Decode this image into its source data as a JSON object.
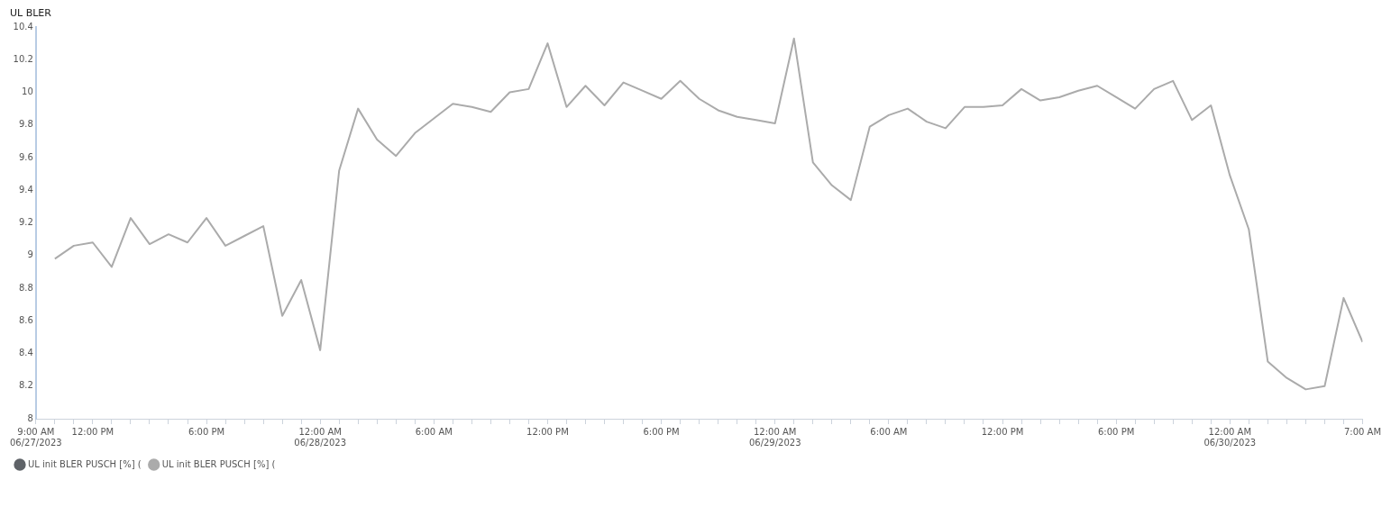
{
  "chart_data": {
    "type": "line",
    "ylabel": "UL BLER",
    "x": [
      "2023-06-27T10:00",
      "2023-06-27T11:00",
      "2023-06-27T12:00",
      "2023-06-27T13:00",
      "2023-06-27T14:00",
      "2023-06-27T15:00",
      "2023-06-27T16:00",
      "2023-06-27T17:00",
      "2023-06-27T18:00",
      "2023-06-27T19:00",
      "2023-06-27T20:00",
      "2023-06-27T21:00",
      "2023-06-27T22:00",
      "2023-06-27T23:00",
      "2023-06-28T00:00",
      "2023-06-28T01:00",
      "2023-06-28T02:00",
      "2023-06-28T03:00",
      "2023-06-28T04:00",
      "2023-06-28T05:00",
      "2023-06-28T06:00",
      "2023-06-28T07:00",
      "2023-06-28T08:00",
      "2023-06-28T09:00",
      "2023-06-28T10:00",
      "2023-06-28T11:00",
      "2023-06-28T12:00",
      "2023-06-28T13:00",
      "2023-06-28T14:00",
      "2023-06-28T15:00",
      "2023-06-28T16:00",
      "2023-06-28T17:00",
      "2023-06-28T18:00",
      "2023-06-28T19:00",
      "2023-06-28T20:00",
      "2023-06-28T21:00",
      "2023-06-28T22:00",
      "2023-06-28T23:00",
      "2023-06-29T00:00",
      "2023-06-29T01:00",
      "2023-06-29T02:00",
      "2023-06-29T03:00",
      "2023-06-29T04:00",
      "2023-06-29T05:00",
      "2023-06-29T06:00",
      "2023-06-29T07:00",
      "2023-06-29T08:00",
      "2023-06-29T09:00",
      "2023-06-29T10:00",
      "2023-06-29T11:00",
      "2023-06-29T12:00",
      "2023-06-29T13:00",
      "2023-06-29T14:00",
      "2023-06-29T15:00",
      "2023-06-29T16:00",
      "2023-06-29T17:00",
      "2023-06-29T18:00",
      "2023-06-29T19:00",
      "2023-06-29T20:00",
      "2023-06-29T21:00",
      "2023-06-29T22:00",
      "2023-06-29T23:00",
      "2023-06-30T00:00",
      "2023-06-30T01:00",
      "2023-06-30T02:00",
      "2023-06-30T03:00",
      "2023-06-30T04:00",
      "2023-06-30T05:00",
      "2023-06-30T06:00",
      "2023-06-30T07:00"
    ],
    "series": [
      {
        "name": "UL init BLER PUSCH [%] (",
        "color": "#5f6368",
        "values": [
          null,
          null,
          null,
          null,
          null,
          null,
          null,
          null,
          null,
          null,
          null,
          null,
          null,
          null,
          null,
          null,
          null,
          null,
          null,
          null,
          null,
          null,
          null,
          null,
          null,
          null,
          null,
          null,
          null,
          null,
          null,
          null,
          null,
          null,
          null,
          null,
          null,
          null,
          null,
          null,
          null,
          null,
          null,
          null,
          null,
          null,
          null,
          null,
          null,
          null,
          null,
          null,
          null,
          null,
          null,
          null,
          null,
          null,
          null,
          null,
          null,
          null,
          null,
          null,
          null,
          null,
          null,
          null,
          null,
          null
        ]
      },
      {
        "name": "UL init BLER PUSCH [%] (",
        "color": "#ababab",
        "values": [
          8.98,
          9.06,
          9.08,
          8.93,
          9.23,
          9.07,
          9.13,
          9.08,
          9.23,
          9.06,
          9.12,
          9.18,
          8.63,
          8.85,
          8.42,
          9.52,
          9.9,
          9.71,
          9.61,
          9.75,
          9.84,
          9.93,
          9.91,
          9.88,
          10.0,
          10.02,
          10.3,
          9.91,
          10.04,
          9.92,
          10.06,
          10.01,
          9.96,
          10.07,
          9.96,
          9.89,
          9.85,
          9.83,
          9.81,
          10.33,
          9.57,
          9.43,
          9.34,
          9.79,
          9.86,
          9.9,
          9.82,
          9.78,
          9.91,
          9.91,
          9.92,
          10.02,
          9.95,
          9.97,
          10.01,
          10.04,
          9.97,
          9.9,
          10.02,
          10.07,
          9.83,
          9.92,
          9.49,
          9.16,
          8.35,
          8.25,
          8.18,
          8.2,
          8.74,
          8.47
        ]
      }
    ],
    "xlim": [
      "2023-06-27T09:00",
      "2023-06-30T07:00"
    ],
    "xticks": [
      {
        "value": "2023-06-27T09:00",
        "label": "9:00 AM\n06/27/2023"
      },
      {
        "value": "2023-06-27T12:00",
        "label": "12:00 PM"
      },
      {
        "value": "2023-06-27T18:00",
        "label": "6:00 PM"
      },
      {
        "value": "2023-06-28T00:00",
        "label": "12:00 AM\n06/28/2023"
      },
      {
        "value": "2023-06-28T06:00",
        "label": "6:00 AM"
      },
      {
        "value": "2023-06-28T12:00",
        "label": "12:00 PM"
      },
      {
        "value": "2023-06-28T18:00",
        "label": "6:00 PM"
      },
      {
        "value": "2023-06-29T00:00",
        "label": "12:00 AM\n06/29/2023"
      },
      {
        "value": "2023-06-29T06:00",
        "label": "6:00 AM"
      },
      {
        "value": "2023-06-29T12:00",
        "label": "12:00 PM"
      },
      {
        "value": "2023-06-29T18:00",
        "label": "6:00 PM"
      },
      {
        "value": "2023-06-30T00:00",
        "label": "12:00 AM\n06/30/2023"
      },
      {
        "value": "2023-06-30T07:00",
        "label": "7:00 AM"
      }
    ],
    "ylim": [
      8,
      10.4
    ],
    "yticks": [
      8,
      8.2,
      8.4,
      8.6,
      8.8,
      9,
      9.2,
      9.4,
      9.6,
      9.8,
      10,
      10.2,
      10.4
    ],
    "grid": false,
    "legend": "bottom left",
    "marker": "none",
    "line_style": "solid"
  }
}
